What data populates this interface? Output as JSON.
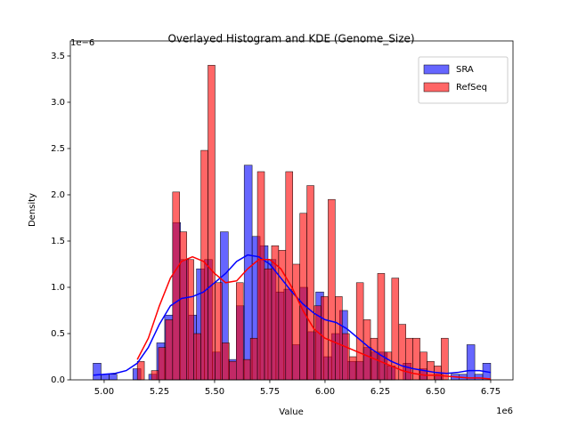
{
  "chart_data": {
    "type": "histogram",
    "title": "Overlayed Histogram and KDE (Genome_Size)",
    "xlabel": "Value",
    "ylabel": "Density",
    "x_offset_label": "1e6",
    "y_offset_label": "1e−6",
    "xlim": [
      4.847,
      6.851
    ],
    "ylim": [
      0,
      3.663
    ],
    "xticks": [
      {
        "value": 5,
        "label": "5.00"
      },
      5.25,
      {
        "value": 5.5,
        "label": "5.50"
      },
      5.75,
      {
        "value": 6,
        "label": "6.00"
      },
      6.25,
      {
        "value": 6.5,
        "label": "6.50"
      },
      6.75
    ],
    "yticks": [
      {
        "value": 0,
        "label": "0.0"
      },
      0.5,
      {
        "value": 1,
        "label": "1.0"
      },
      1.5,
      {
        "value": 2,
        "label": "2.0"
      },
      2.5,
      {
        "value": 3,
        "label": "3.0"
      },
      3.5
    ],
    "legend": "upper right",
    "alpha": 0.6,
    "series": [
      {
        "name": "SRA",
        "color": "#0000ff",
        "bins": [
          4.95,
          4.986,
          5.022,
          5.058,
          5.094,
          5.13,
          5.166,
          5.202,
          5.238,
          5.274,
          5.31,
          5.346,
          5.382,
          5.418,
          5.454,
          5.49,
          5.526,
          5.562,
          5.598,
          5.634,
          5.67,
          5.706,
          5.742,
          5.778,
          5.814,
          5.85,
          5.886,
          5.922,
          5.958,
          5.994,
          6.03,
          6.066,
          6.102,
          6.138,
          6.174,
          6.21,
          6.246,
          6.282,
          6.318,
          6.354,
          6.39,
          6.426,
          6.462,
          6.498,
          6.534,
          6.57,
          6.606,
          6.642,
          6.678,
          6.714,
          6.75
        ],
        "values": [
          0.18,
          0.06,
          0.06,
          0,
          0,
          0.12,
          0,
          0.06,
          0.4,
          0.7,
          1.7,
          1.3,
          0.7,
          1.2,
          1.3,
          0.3,
          1.6,
          0.22,
          0.8,
          2.32,
          1.55,
          1.45,
          1.3,
          0.95,
          0.98,
          0.38,
          1.0,
          0.52,
          0.95,
          0.25,
          0.5,
          0.75,
          0.2,
          0.2,
          0.35,
          0.3,
          0.3,
          0.15,
          0,
          0.18,
          0,
          0.12,
          0,
          0.06,
          0,
          0.06,
          0.06,
          0.38,
          0.06,
          0.18
        ],
        "kde_x": [
          4.95,
          5.0,
          5.05,
          5.1,
          5.15,
          5.2,
          5.25,
          5.3,
          5.35,
          5.4,
          5.45,
          5.5,
          5.55,
          5.6,
          5.65,
          5.7,
          5.75,
          5.8,
          5.85,
          5.9,
          5.95,
          6.0,
          6.05,
          6.1,
          6.15,
          6.2,
          6.25,
          6.3,
          6.35,
          6.4,
          6.45,
          6.5,
          6.55,
          6.6,
          6.65,
          6.7,
          6.75
        ],
        "kde_y": [
          0.05,
          0.06,
          0.07,
          0.1,
          0.18,
          0.35,
          0.6,
          0.8,
          0.88,
          0.9,
          0.95,
          1.05,
          1.15,
          1.28,
          1.35,
          1.33,
          1.25,
          1.1,
          0.95,
          0.82,
          0.72,
          0.65,
          0.62,
          0.55,
          0.45,
          0.35,
          0.27,
          0.2,
          0.15,
          0.12,
          0.1,
          0.08,
          0.07,
          0.08,
          0.1,
          0.1,
          0.08
        ]
      },
      {
        "name": "RefSeq",
        "color": "#ff0000",
        "bins": [
          5.15,
          5.182,
          5.214,
          5.246,
          5.278,
          5.31,
          5.342,
          5.374,
          5.406,
          5.438,
          5.47,
          5.502,
          5.534,
          5.566,
          5.598,
          5.63,
          5.662,
          5.694,
          5.726,
          5.758,
          5.79,
          5.822,
          5.854,
          5.886,
          5.918,
          5.95,
          5.982,
          6.014,
          6.046,
          6.078,
          6.11,
          6.142,
          6.174,
          6.206,
          6.238,
          6.27,
          6.302,
          6.334,
          6.366,
          6.398,
          6.43,
          6.462,
          6.494,
          6.526,
          6.558,
          6.59,
          6.622,
          6.654,
          6.686,
          6.718,
          6.75
        ],
        "values": [
          0.2,
          0,
          0.1,
          0.35,
          0.65,
          2.03,
          1.6,
          1.3,
          0.5,
          2.48,
          3.4,
          1.05,
          0.4,
          0.2,
          1.05,
          0.22,
          0.45,
          2.25,
          1.2,
          1.45,
          1.4,
          2.25,
          1.25,
          1.8,
          2.1,
          0.8,
          0.9,
          1.95,
          0.9,
          0.5,
          0.25,
          1.05,
          0.65,
          0.45,
          1.15,
          0.3,
          1.1,
          0.6,
          0.45,
          0.45,
          0.3,
          0.2,
          0.15,
          0.45,
          0,
          0,
          0,
          0,
          0,
          0
        ],
        "kde_x": [
          5.15,
          5.2,
          5.25,
          5.3,
          5.35,
          5.4,
          5.45,
          5.5,
          5.55,
          5.6,
          5.65,
          5.7,
          5.75,
          5.8,
          5.85,
          5.9,
          5.95,
          6.0,
          6.05,
          6.1,
          6.15,
          6.2,
          6.25,
          6.3,
          6.35,
          6.4,
          6.45,
          6.5,
          6.55,
          6.6,
          6.65,
          6.7,
          6.75
        ],
        "kde_y": [
          0.22,
          0.45,
          0.8,
          1.1,
          1.28,
          1.33,
          1.28,
          1.15,
          1.05,
          1.07,
          1.2,
          1.3,
          1.3,
          1.2,
          1.0,
          0.75,
          0.55,
          0.45,
          0.4,
          0.35,
          0.3,
          0.25,
          0.2,
          0.15,
          0.1,
          0.07,
          0.05,
          0.05,
          0.04,
          0.03,
          0.02,
          0.02,
          0.01
        ]
      }
    ]
  }
}
